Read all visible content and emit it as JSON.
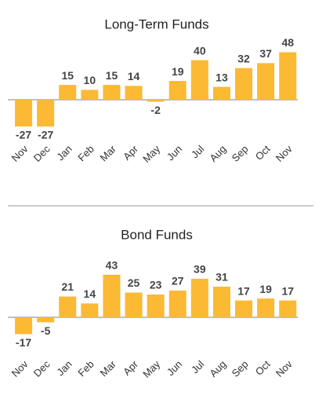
{
  "chart_data": [
    {
      "type": "bar",
      "title": "Long-Term Funds",
      "categories": [
        "Nov",
        "Dec",
        "Jan",
        "Feb",
        "Mar",
        "Apr",
        "May",
        "Jun",
        "Jul",
        "Aug",
        "Sep",
        "Oct",
        "Nov"
      ],
      "values": [
        -27,
        -27,
        15,
        10,
        15,
        14,
        -2,
        19,
        40,
        13,
        32,
        37,
        48
      ],
      "color": "#fbb934"
    },
    {
      "type": "bar",
      "title": "Bond Funds",
      "categories": [
        "Nov",
        "Dec",
        "Jan",
        "Feb",
        "Mar",
        "Apr",
        "May",
        "Jun",
        "Jul",
        "Aug",
        "Sep",
        "Oct",
        "Nov"
      ],
      "values": [
        -17,
        -5,
        21,
        14,
        43,
        25,
        23,
        27,
        39,
        31,
        17,
        19,
        17
      ],
      "color": "#fbb934"
    }
  ]
}
